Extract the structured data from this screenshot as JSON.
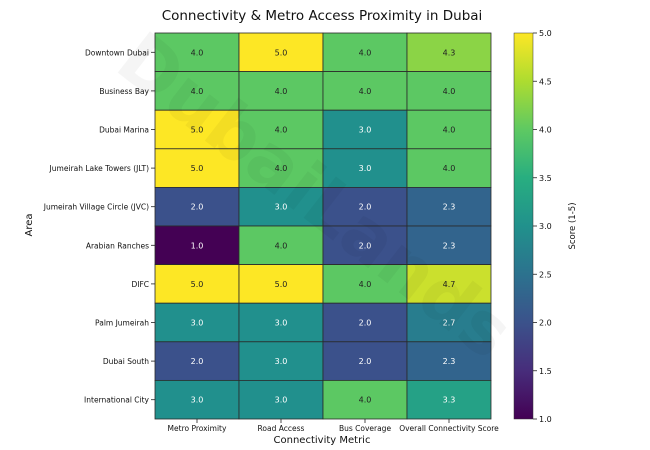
{
  "chart_data": {
    "type": "heatmap",
    "title": "Connectivity & Metro Access Proximity in Dubai",
    "xlabel": "Connectivity Metric",
    "ylabel": "Area",
    "columns": [
      "Metro Proximity",
      "Road Access",
      "Bus Coverage",
      "Overall Connectivity Score"
    ],
    "rows": [
      "Downtown Dubai",
      "Business Bay",
      "Dubai Marina",
      "Jumeirah Lake Towers (JLT)",
      "Jumeirah Village Circle (JVC)",
      "Arabian Ranches",
      "DIFC",
      "Palm Jumeirah",
      "Dubai South",
      "International City"
    ],
    "values": [
      [
        4.0,
        5.0,
        4.0,
        4.3
      ],
      [
        4.0,
        4.0,
        4.0,
        4.0
      ],
      [
        5.0,
        4.0,
        3.0,
        4.0
      ],
      [
        5.0,
        4.0,
        3.0,
        4.0
      ],
      [
        2.0,
        3.0,
        2.0,
        2.3
      ],
      [
        1.0,
        4.0,
        2.0,
        2.3
      ],
      [
        5.0,
        5.0,
        4.0,
        4.7
      ],
      [
        3.0,
        3.0,
        2.0,
        2.7
      ],
      [
        2.0,
        3.0,
        2.0,
        2.3
      ],
      [
        3.0,
        3.0,
        4.0,
        3.3
      ]
    ],
    "colorbar": {
      "label": "Score (1-5)",
      "min": 1.0,
      "max": 5.0,
      "ticks": [
        "1.0",
        "1.5",
        "2.0",
        "2.5",
        "3.0",
        "3.5",
        "4.0",
        "4.5",
        "5.0"
      ]
    },
    "colormap": "viridis",
    "watermark": "DubaiLands"
  }
}
